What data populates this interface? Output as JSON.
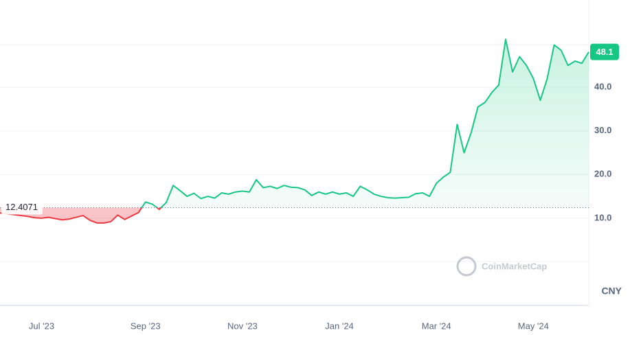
{
  "chart_data": {
    "type": "line",
    "categories": [
      null,
      null,
      null,
      null,
      null,
      null,
      "Jul '23",
      null,
      null,
      null,
      null,
      null,
      null,
      null,
      null,
      null,
      null,
      null,
      null,
      null,
      null,
      "Sep '23",
      null,
      null,
      null,
      null,
      null,
      null,
      null,
      null,
      null,
      null,
      null,
      null,
      null,
      "Nov '23",
      null,
      null,
      null,
      null,
      null,
      null,
      null,
      null,
      null,
      null,
      null,
      null,
      null,
      "Jan '24",
      null,
      null,
      null,
      null,
      null,
      null,
      null,
      null,
      null,
      null,
      null,
      null,
      null,
      "Mar '24",
      null,
      null,
      null,
      null,
      null,
      null,
      null,
      null,
      null,
      null,
      null,
      null,
      null,
      "May '24",
      null,
      null,
      null,
      null,
      null,
      null,
      null,
      null
    ],
    "values": [
      11.2,
      11.0,
      10.8,
      10.6,
      10.4,
      10.1,
      10.0,
      10.2,
      9.9,
      9.6,
      9.8,
      10.2,
      10.6,
      9.5,
      8.9,
      8.9,
      9.2,
      10.7,
      9.7,
      10.5,
      11.3,
      13.7,
      13.2,
      12.0,
      13.6,
      17.5,
      16.3,
      15.0,
      15.7,
      14.5,
      15.0,
      14.6,
      15.8,
      15.5,
      16.0,
      16.2,
      16.0,
      18.8,
      17.0,
      17.3,
      16.8,
      17.5,
      17.1,
      17.0,
      16.5,
      15.2,
      16.0,
      15.5,
      16.0,
      15.5,
      15.8,
      15.0,
      17.3,
      16.5,
      15.5,
      15.0,
      14.7,
      14.6,
      14.7,
      14.8,
      15.6,
      15.8,
      15.0,
      18.0,
      19.4,
      20.5,
      31.5,
      25.0,
      29.5,
      35.5,
      36.5,
      38.8,
      40.5,
      51.0,
      43.5,
      47.0,
      45.0,
      42.0,
      37.0,
      42.0,
      49.7,
      48.5,
      45.0,
      46.0,
      45.5,
      48.1
    ],
    "baseline": 12.4071,
    "up_color": "#16c784",
    "down_color": "#ea3943",
    "ylim": [
      -10,
      60
    ],
    "yticks": [
      {
        "value": 10,
        "label": "10.0"
      },
      {
        "value": 20,
        "label": "20.0"
      },
      {
        "value": 30,
        "label": "30.0"
      },
      {
        "value": 40,
        "label": "40.0"
      }
    ],
    "grid": true,
    "watermark": "CoinMarketCap",
    "currency": "CNY"
  }
}
